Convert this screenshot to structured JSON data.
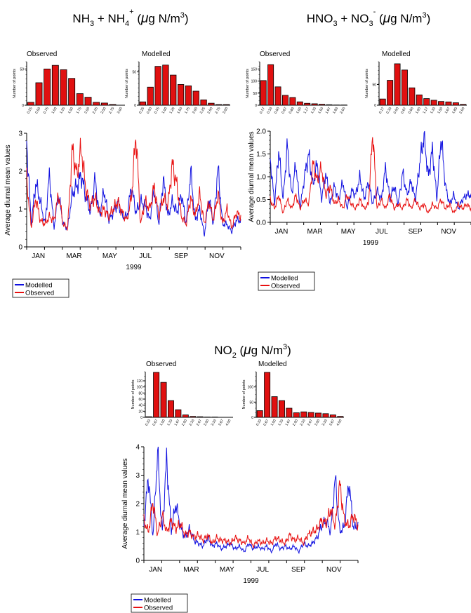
{
  "panels": [
    {
      "title": {
        "base1": "NH",
        "sub1": "3",
        "mid": " + NH",
        "sub2": "4",
        "sup2": "+",
        "unit": " (",
        "mu": "μ",
        "unit2": "g N/m",
        "sup3": "3",
        "close": ")"
      },
      "hist_observed_label": "Observed",
      "hist_modelled_label": "Modelled",
      "hist_ylabel": "Number of points",
      "legend": [
        "Modelled",
        "Observed"
      ]
    },
    {
      "title": {
        "base1": "HNO",
        "sub1": "3",
        "mid": " + NO",
        "sub2": "3",
        "sup2": "-",
        "unit": " (",
        "mu": "μ",
        "unit2": "g N/m",
        "sup3": "3",
        "close": ")"
      },
      "hist_observed_label": "Observed",
      "hist_modelled_label": "Modelled",
      "hist_ylabel": "Number of points",
      "legend": [
        "Modelled",
        "Observed"
      ]
    },
    {
      "title": {
        "base1": "NO",
        "sub1": "2",
        "mid": "",
        "sub2": "",
        "sup2": "",
        "unit": " (",
        "mu": "μ",
        "unit2": "g N/m",
        "sup3": "3",
        "close": ")"
      },
      "hist_observed_label": "Observed",
      "hist_modelled_label": "Modelled",
      "hist_ylabel": "Number of points",
      "legend": [
        "Modelled",
        "Observed"
      ]
    }
  ],
  "colors": {
    "modelled": "#1010e0",
    "observed": "#e81010",
    "bar_fill": "#e01010",
    "bar_stroke": "#000000"
  },
  "chart_data": [
    {
      "type": "bar",
      "panel": 0,
      "title": "Observed",
      "categories": [
        "0.25",
        "0.50",
        "0.75",
        "1.00",
        "1.25",
        "1.50",
        "1.75",
        "2.00",
        "2.25",
        "2.50",
        "2.75",
        "3.00"
      ],
      "values": [
        4,
        31,
        50,
        55,
        49,
        37,
        16,
        11,
        4,
        3,
        1,
        0
      ],
      "ylim": [
        0,
        60
      ],
      "yticks": [
        0,
        50
      ],
      "ylabel": "Number of points"
    },
    {
      "type": "bar",
      "panel": 0,
      "title": "Modelled",
      "categories": [
        "0.25",
        "0.50",
        "0.75",
        "1.00",
        "1.25",
        "1.50",
        "1.75",
        "2.00",
        "2.25",
        "2.50",
        "2.75",
        "3.00"
      ],
      "values": [
        5,
        27,
        58,
        60,
        45,
        31,
        29,
        21,
        8,
        3,
        1,
        1
      ],
      "ylim": [
        0,
        65
      ],
      "yticks": [
        0,
        50
      ],
      "ylabel": "Number of points"
    },
    {
      "type": "line",
      "panel": 0,
      "xlabel": "1999",
      "ylabel": "Average diurnal mean values",
      "ylim": [
        0,
        3
      ],
      "yticks": [
        0,
        1,
        2,
        3
      ],
      "xticks": [
        "JAN",
        "MAR",
        "MAY",
        "JUL",
        "SEP",
        "NOV"
      ],
      "series": [
        {
          "name": "Modelled",
          "values": [
            2.8,
            0.6,
            1.7,
            1.2,
            0.6,
            1.9,
            0.5,
            1.4,
            0.6,
            0.5,
            1.4,
            1.6,
            1.9,
            1.3,
            0.9,
            1.8,
            0.8,
            1.5,
            0.7,
            0.9,
            1.2,
            0.8,
            0.8,
            1.6,
            0.9,
            1.2,
            1.1,
            0.7,
            1.5,
            0.6,
            1.8,
            0.8,
            1.2,
            0.9,
            1.4,
            0.6,
            2.0,
            0.7,
            1.0,
            0.3,
            1.3,
            0.6,
            2.1,
            0.6,
            0.6,
            0.4,
            0.7,
            0.7
          ]
        },
        {
          "name": "Observed",
          "values": [
            1.8,
            0.5,
            1.3,
            0.7,
            0.6,
            0.8,
            0.7,
            1.4,
            0.6,
            0.5,
            2.6,
            1.9,
            2.6,
            1.5,
            1.1,
            1.3,
            0.9,
            1.0,
            0.8,
            1.0,
            1.2,
            0.9,
            0.7,
            1.3,
            3.0,
            0.6,
            1.2,
            1.0,
            1.6,
            0.8,
            1.3,
            1.1,
            2.2,
            1.6,
            0.8,
            0.6,
            1.3,
            0.8,
            1.4,
            0.6,
            1.2,
            0.7,
            1.4,
            0.6,
            1.0,
            0.5,
            0.9,
            0.8
          ]
        }
      ]
    },
    {
      "type": "bar",
      "panel": 1,
      "title": "Observed",
      "categories": [
        "0.17",
        "0.33",
        "0.50",
        "0.67",
        "0.83",
        "1.00",
        "1.17",
        "1.33",
        "1.50",
        "1.67",
        "1.83",
        "2.00"
      ],
      "values": [
        102,
        168,
        76,
        41,
        32,
        14,
        8,
        6,
        4,
        2,
        1,
        1
      ],
      "ylim": [
        0,
        180
      ],
      "yticks": [
        0,
        50,
        100,
        150
      ],
      "ylabel": "Number of points"
    },
    {
      "type": "bar",
      "panel": 1,
      "title": "Modelled",
      "categories": [
        "0.17",
        "0.33",
        "0.50",
        "0.67",
        "0.83",
        "1.00",
        "1.17",
        "1.33",
        "1.50",
        "1.67",
        "1.83",
        "2.00"
      ],
      "values": [
        15,
        60,
        100,
        85,
        42,
        25,
        16,
        12,
        9,
        8,
        6,
        2
      ],
      "ylim": [
        0,
        105
      ],
      "yticks": [
        0,
        50
      ],
      "ylabel": "Number of points"
    },
    {
      "type": "line",
      "panel": 1,
      "xlabel": "1999",
      "ylabel": "Average diurnal mean values",
      "ylim": [
        0,
        2
      ],
      "yticks": [
        0.0,
        0.5,
        1.0,
        1.5,
        2.0
      ],
      "xticks": [
        "JAN",
        "MAR",
        "MAY",
        "JUL",
        "SEP",
        "NOV"
      ],
      "series": [
        {
          "name": "Modelled",
          "values": [
            1.4,
            0.4,
            1.6,
            0.5,
            1.7,
            0.6,
            1.3,
            0.3,
            1.0,
            1.5,
            0.8,
            1.3,
            0.5,
            1.1,
            0.4,
            0.8,
            0.5,
            0.9,
            0.3,
            0.7,
            0.6,
            1.0,
            0.5,
            0.9,
            0.4,
            0.7,
            0.5,
            1.2,
            0.5,
            0.8,
            0.4,
            1.1,
            0.6,
            0.9,
            0.5,
            1.3,
            1.9,
            1.0,
            1.6,
            0.5,
            1.9,
            0.8,
            0.4,
            0.6,
            0.3,
            0.5,
            0.6,
            0.6
          ]
        },
        {
          "name": "Observed",
          "values": [
            0.5,
            0.3,
            0.6,
            0.2,
            0.5,
            0.3,
            0.6,
            0.3,
            0.5,
            0.4,
            1.3,
            0.9,
            1.2,
            0.6,
            0.8,
            0.4,
            0.5,
            0.3,
            0.6,
            0.4,
            0.3,
            0.5,
            0.3,
            0.4,
            2.0,
            0.3,
            0.5,
            0.3,
            0.6,
            0.3,
            0.4,
            0.3,
            0.5,
            0.3,
            0.5,
            0.3,
            0.4,
            0.2,
            0.4,
            0.3,
            0.5,
            0.3,
            0.4,
            0.2,
            0.4,
            0.3,
            0.4,
            0.3
          ]
        }
      ]
    },
    {
      "type": "bar",
      "panel": 2,
      "title": "Observed",
      "categories": [
        "0.33",
        "0.67",
        "1.00",
        "1.33",
        "1.67",
        "2.00",
        "2.33",
        "2.67",
        "3.00",
        "3.33",
        "3.67",
        "4.00"
      ],
      "values": [
        2,
        148,
        115,
        55,
        25,
        8,
        3,
        2,
        1,
        1,
        0,
        0
      ],
      "ylim": [
        0,
        150
      ],
      "yticks": [
        0,
        20,
        40,
        60,
        80,
        100,
        120
      ],
      "ylabel": "Number of points"
    },
    {
      "type": "bar",
      "panel": 2,
      "title": "Modelled",
      "categories": [
        "0.33",
        "0.67",
        "1.00",
        "1.33",
        "1.67",
        "2.00",
        "2.33",
        "2.67",
        "3.00",
        "3.33",
        "3.67",
        "4.00"
      ],
      "values": [
        22,
        148,
        68,
        55,
        30,
        15,
        18,
        16,
        14,
        12,
        8,
        3
      ],
      "ylim": [
        0,
        150
      ],
      "yticks": [
        0,
        50,
        100
      ],
      "ylabel": "Number of points"
    },
    {
      "type": "line",
      "panel": 2,
      "xlabel": "1999",
      "ylabel": "Average diurnal mean values",
      "ylim": [
        0,
        4
      ],
      "yticks": [
        0,
        1,
        2,
        3,
        4
      ],
      "xticks": [
        "JAN",
        "MAR",
        "MAY",
        "JUL",
        "SEP",
        "NOV"
      ],
      "series": [
        {
          "name": "Modelled",
          "values": [
            1.2,
            3.0,
            0.8,
            3.9,
            0.9,
            3.6,
            1.0,
            2.0,
            1.2,
            0.8,
            1.1,
            0.7,
            0.6,
            0.5,
            0.8,
            0.5,
            0.6,
            0.4,
            0.5,
            0.6,
            0.4,
            0.5,
            0.3,
            0.6,
            0.4,
            0.5,
            0.4,
            0.5,
            0.3,
            0.6,
            0.4,
            0.5,
            0.4,
            0.5,
            0.3,
            0.6,
            0.5,
            0.6,
            0.8,
            1.2,
            1.4,
            1.0,
            2.9,
            1.0,
            1.2,
            2.8,
            1.1,
            1.3
          ]
        },
        {
          "name": "Observed",
          "values": [
            1.4,
            1.0,
            2.1,
            0.9,
            1.6,
            1.0,
            1.4,
            1.1,
            1.3,
            0.9,
            1.0,
            0.8,
            0.9,
            0.7,
            0.9,
            0.6,
            0.8,
            0.7,
            0.7,
            0.6,
            0.8,
            0.7,
            0.6,
            0.8,
            0.5,
            0.7,
            0.6,
            0.7,
            0.6,
            0.8,
            0.7,
            0.6,
            0.9,
            0.7,
            0.8,
            0.6,
            0.9,
            1.0,
            1.1,
            1.4,
            1.3,
            1.8,
            1.2,
            2.7,
            1.4,
            1.2,
            1.6,
            1.2
          ]
        }
      ]
    }
  ]
}
